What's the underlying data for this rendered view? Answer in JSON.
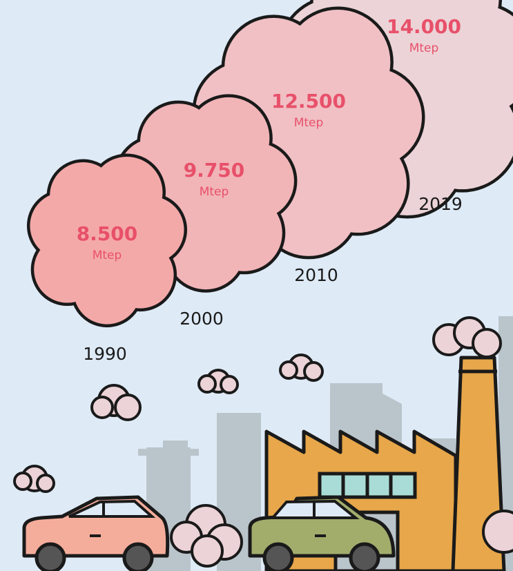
{
  "chart_data": {
    "type": "bubble",
    "categories": [
      "1990",
      "2000",
      "2010",
      "2019"
    ],
    "values": [
      8500,
      9750,
      12500,
      14000
    ],
    "value_labels": [
      "8.500",
      "9.750",
      "12.500",
      "14.000"
    ],
    "unit": "Mtep",
    "colors": [
      "#f4a9a9",
      "#f1b4b7",
      "#f0c0c4",
      "#ecd3d7"
    ]
  }
}
